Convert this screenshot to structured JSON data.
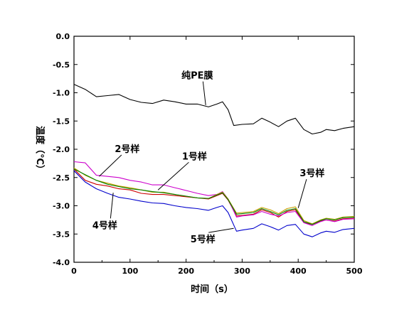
{
  "chart_data": {
    "type": "line",
    "title": "",
    "xlabel": "时间（s）",
    "ylabel": "温度（℃）",
    "xlim": [
      0,
      500
    ],
    "ylim": [
      -4.0,
      0.0
    ],
    "x_ticks": [
      0,
      100,
      200,
      300,
      400,
      500
    ],
    "x_tick_labels": [
      "0",
      "100",
      "200",
      "300",
      "400",
      "500"
    ],
    "y_ticks": [
      0.0,
      -0.5,
      -1.0,
      -1.5,
      -2.0,
      -2.5,
      -3.0,
      -3.5,
      -4.0
    ],
    "y_tick_labels": [
      "0.0",
      "-0.5",
      "-1.0",
      "-1.5",
      "-2.0",
      "-2.5",
      "-3.0",
      "-3.5",
      "-4.0"
    ],
    "grid": false,
    "legend": "none",
    "series": [
      {
        "name": "纯PE膜",
        "color": "#000000",
        "points": [
          [
            0,
            -0.85
          ],
          [
            20,
            -0.94
          ],
          [
            40,
            -1.07
          ],
          [
            60,
            -1.05
          ],
          [
            80,
            -1.03
          ],
          [
            100,
            -1.12
          ],
          [
            120,
            -1.17
          ],
          [
            140,
            -1.19
          ],
          [
            160,
            -1.13
          ],
          [
            180,
            -1.16
          ],
          [
            200,
            -1.2
          ],
          [
            220,
            -1.2
          ],
          [
            240,
            -1.25
          ],
          [
            255,
            -1.2
          ],
          [
            265,
            -1.16
          ],
          [
            275,
            -1.3
          ],
          [
            285,
            -1.58
          ],
          [
            300,
            -1.56
          ],
          [
            320,
            -1.55
          ],
          [
            335,
            -1.45
          ],
          [
            350,
            -1.52
          ],
          [
            365,
            -1.6
          ],
          [
            380,
            -1.5
          ],
          [
            395,
            -1.45
          ],
          [
            410,
            -1.65
          ],
          [
            425,
            -1.73
          ],
          [
            440,
            -1.7
          ],
          [
            450,
            -1.65
          ],
          [
            465,
            -1.67
          ],
          [
            480,
            -1.63
          ],
          [
            500,
            -1.6
          ]
        ]
      },
      {
        "name": "1号样",
        "color": "#cc0000",
        "points": [
          [
            0,
            -2.35
          ],
          [
            20,
            -2.55
          ],
          [
            40,
            -2.62
          ],
          [
            60,
            -2.65
          ],
          [
            80,
            -2.7
          ],
          [
            100,
            -2.72
          ],
          [
            120,
            -2.78
          ],
          [
            140,
            -2.8
          ],
          [
            160,
            -2.8
          ],
          [
            180,
            -2.82
          ],
          [
            200,
            -2.84
          ],
          [
            220,
            -2.86
          ],
          [
            240,
            -2.88
          ],
          [
            255,
            -2.82
          ],
          [
            265,
            -2.78
          ],
          [
            275,
            -2.9
          ],
          [
            290,
            -3.18
          ],
          [
            300,
            -3.17
          ],
          [
            320,
            -3.15
          ],
          [
            335,
            -3.07
          ],
          [
            350,
            -3.12
          ],
          [
            365,
            -3.2
          ],
          [
            380,
            -3.1
          ],
          [
            395,
            -3.07
          ],
          [
            410,
            -3.3
          ],
          [
            425,
            -3.33
          ],
          [
            440,
            -3.27
          ],
          [
            450,
            -3.25
          ],
          [
            465,
            -3.27
          ],
          [
            480,
            -3.23
          ],
          [
            500,
            -3.22
          ]
        ]
      },
      {
        "name": "2号样",
        "color": "#cc00cc",
        "points": [
          [
            0,
            -2.22
          ],
          [
            20,
            -2.24
          ],
          [
            40,
            -2.46
          ],
          [
            60,
            -2.48
          ],
          [
            80,
            -2.5
          ],
          [
            100,
            -2.55
          ],
          [
            120,
            -2.58
          ],
          [
            140,
            -2.63
          ],
          [
            160,
            -2.63
          ],
          [
            180,
            -2.68
          ],
          [
            200,
            -2.73
          ],
          [
            220,
            -2.78
          ],
          [
            240,
            -2.82
          ],
          [
            255,
            -2.8
          ],
          [
            265,
            -2.75
          ],
          [
            275,
            -2.88
          ],
          [
            290,
            -3.2
          ],
          [
            300,
            -3.18
          ],
          [
            320,
            -3.16
          ],
          [
            335,
            -3.1
          ],
          [
            350,
            -3.15
          ],
          [
            365,
            -3.18
          ],
          [
            380,
            -3.12
          ],
          [
            395,
            -3.1
          ],
          [
            410,
            -3.3
          ],
          [
            425,
            -3.35
          ],
          [
            440,
            -3.28
          ],
          [
            450,
            -3.25
          ],
          [
            465,
            -3.28
          ],
          [
            480,
            -3.24
          ],
          [
            500,
            -3.23
          ]
        ]
      },
      {
        "name": "3号样",
        "color": "#c8a000",
        "points": [
          [
            0,
            -2.33
          ],
          [
            20,
            -2.46
          ],
          [
            40,
            -2.55
          ],
          [
            60,
            -2.6
          ],
          [
            80,
            -2.65
          ],
          [
            100,
            -2.68
          ],
          [
            120,
            -2.72
          ],
          [
            140,
            -2.76
          ],
          [
            160,
            -2.76
          ],
          [
            180,
            -2.8
          ],
          [
            200,
            -2.83
          ],
          [
            220,
            -2.86
          ],
          [
            240,
            -2.87
          ],
          [
            255,
            -2.8
          ],
          [
            265,
            -2.76
          ],
          [
            275,
            -2.88
          ],
          [
            290,
            -3.13
          ],
          [
            300,
            -3.12
          ],
          [
            320,
            -3.1
          ],
          [
            335,
            -3.03
          ],
          [
            350,
            -3.07
          ],
          [
            365,
            -3.14
          ],
          [
            380,
            -3.05
          ],
          [
            395,
            -3.02
          ],
          [
            410,
            -3.26
          ],
          [
            425,
            -3.32
          ],
          [
            440,
            -3.25
          ],
          [
            450,
            -3.22
          ],
          [
            465,
            -3.24
          ],
          [
            480,
            -3.2
          ],
          [
            500,
            -3.19
          ]
        ]
      },
      {
        "name": "4号样",
        "color": "#008000",
        "points": [
          [
            0,
            -2.35
          ],
          [
            20,
            -2.45
          ],
          [
            40,
            -2.55
          ],
          [
            60,
            -2.62
          ],
          [
            80,
            -2.66
          ],
          [
            100,
            -2.7
          ],
          [
            120,
            -2.72
          ],
          [
            140,
            -2.75
          ],
          [
            160,
            -2.77
          ],
          [
            180,
            -2.8
          ],
          [
            200,
            -2.83
          ],
          [
            220,
            -2.86
          ],
          [
            240,
            -2.87
          ],
          [
            255,
            -2.81
          ],
          [
            265,
            -2.77
          ],
          [
            275,
            -2.89
          ],
          [
            290,
            -3.15
          ],
          [
            300,
            -3.14
          ],
          [
            320,
            -3.12
          ],
          [
            335,
            -3.05
          ],
          [
            350,
            -3.1
          ],
          [
            365,
            -3.16
          ],
          [
            380,
            -3.08
          ],
          [
            395,
            -3.05
          ],
          [
            410,
            -3.28
          ],
          [
            425,
            -3.33
          ],
          [
            440,
            -3.26
          ],
          [
            450,
            -3.23
          ],
          [
            465,
            -3.25
          ],
          [
            480,
            -3.21
          ],
          [
            500,
            -3.2
          ]
        ]
      },
      {
        "name": "5号样",
        "color": "#0000cc",
        "points": [
          [
            0,
            -2.38
          ],
          [
            20,
            -2.58
          ],
          [
            40,
            -2.7
          ],
          [
            60,
            -2.78
          ],
          [
            80,
            -2.85
          ],
          [
            100,
            -2.88
          ],
          [
            120,
            -2.92
          ],
          [
            140,
            -2.95
          ],
          [
            160,
            -2.96
          ],
          [
            180,
            -3.0
          ],
          [
            200,
            -3.03
          ],
          [
            220,
            -3.05
          ],
          [
            240,
            -3.08
          ],
          [
            255,
            -3.03
          ],
          [
            265,
            -3.0
          ],
          [
            275,
            -3.12
          ],
          [
            290,
            -3.45
          ],
          [
            300,
            -3.43
          ],
          [
            320,
            -3.4
          ],
          [
            335,
            -3.32
          ],
          [
            350,
            -3.37
          ],
          [
            365,
            -3.43
          ],
          [
            380,
            -3.35
          ],
          [
            395,
            -3.33
          ],
          [
            410,
            -3.5
          ],
          [
            425,
            -3.55
          ],
          [
            440,
            -3.48
          ],
          [
            450,
            -3.45
          ],
          [
            465,
            -3.47
          ],
          [
            480,
            -3.42
          ],
          [
            500,
            -3.4
          ]
        ]
      }
    ],
    "annotations": [
      {
        "text": "纯PE膜",
        "at": [
          235,
          -1.22
        ],
        "label": [
          220,
          -0.75
        ]
      },
      {
        "text": "1号样",
        "at": [
          150,
          -2.72
        ],
        "label": [
          215,
          -2.18
        ]
      },
      {
        "text": "2号样",
        "at": [
          45,
          -2.48
        ],
        "label": [
          95,
          -2.05
        ]
      },
      {
        "text": "3号样",
        "at": [
          400,
          -3.04
        ],
        "label": [
          425,
          -2.48
        ]
      },
      {
        "text": "4号样",
        "at": [
          70,
          -2.77
        ],
        "label": [
          55,
          -3.4
        ]
      },
      {
        "text": "5号样",
        "at": [
          285,
          -3.4
        ],
        "label": [
          230,
          -3.65
        ]
      }
    ]
  }
}
